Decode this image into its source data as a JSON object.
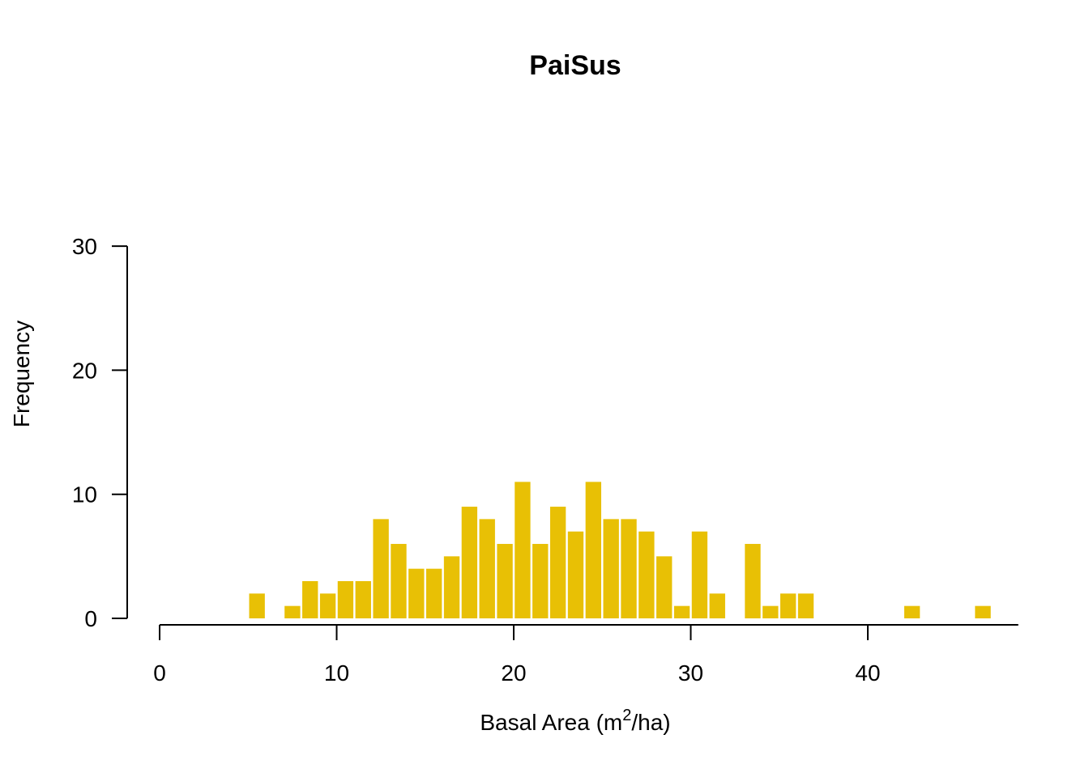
{
  "chart_data": {
    "type": "bar",
    "title": "PaiSus",
    "xlabel": {
      "prefix": "Basal Area (m",
      "superscript": "2",
      "suffix": "/ha)"
    },
    "ylabel": "Frequency",
    "bar_color": "#E8C005",
    "xlim": [
      0,
      48.5
    ],
    "ylim": [
      0,
      30
    ],
    "xticks": [
      0,
      10,
      20,
      30,
      40
    ],
    "yticks": [
      0,
      10,
      20,
      30
    ],
    "bin_width": 1,
    "bins": [
      {
        "x": 5,
        "value": 2
      },
      {
        "x": 7,
        "value": 1
      },
      {
        "x": 8,
        "value": 3
      },
      {
        "x": 9,
        "value": 2
      },
      {
        "x": 10,
        "value": 3
      },
      {
        "x": 11,
        "value": 3
      },
      {
        "x": 12,
        "value": 8
      },
      {
        "x": 13,
        "value": 6
      },
      {
        "x": 14,
        "value": 4
      },
      {
        "x": 15,
        "value": 4
      },
      {
        "x": 16,
        "value": 5
      },
      {
        "x": 17,
        "value": 9
      },
      {
        "x": 18,
        "value": 8
      },
      {
        "x": 19,
        "value": 6
      },
      {
        "x": 20,
        "value": 11
      },
      {
        "x": 21,
        "value": 6
      },
      {
        "x": 22,
        "value": 9
      },
      {
        "x": 23,
        "value": 7
      },
      {
        "x": 24,
        "value": 11
      },
      {
        "x": 25,
        "value": 8
      },
      {
        "x": 26,
        "value": 8
      },
      {
        "x": 27,
        "value": 7
      },
      {
        "x": 28,
        "value": 5
      },
      {
        "x": 29,
        "value": 1
      },
      {
        "x": 30,
        "value": 7
      },
      {
        "x": 31,
        "value": 2
      },
      {
        "x": 33,
        "value": 6
      },
      {
        "x": 34,
        "value": 1
      },
      {
        "x": 35,
        "value": 2
      },
      {
        "x": 36,
        "value": 2
      },
      {
        "x": 42,
        "value": 1
      },
      {
        "x": 46,
        "value": 1
      }
    ]
  }
}
